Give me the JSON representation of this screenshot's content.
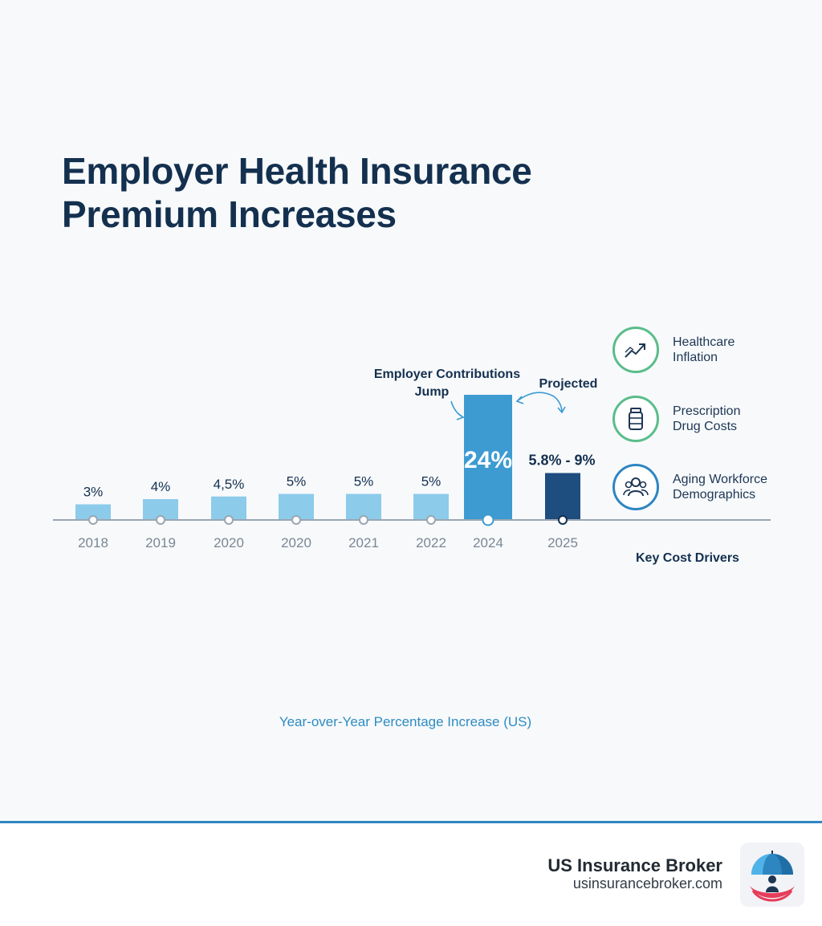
{
  "title_line1": "Employer Health Insurance",
  "title_line2": "Premium Increases",
  "chart_data": {
    "type": "bar",
    "title": "Employer Health Insurance Premium Increases",
    "subtitle": "Year-over-Year Percentage Increase (US)",
    "xlabel": "",
    "ylabel": "",
    "ylim": [
      0,
      24
    ],
    "grid": false,
    "categories": [
      "2018",
      "2019",
      "2020",
      "2020",
      "2021",
      "2022",
      "2024",
      "2025"
    ],
    "values": [
      3,
      4,
      4.5,
      5,
      5,
      5,
      24,
      9
    ],
    "labels": [
      "3%",
      "4%",
      "4,5%",
      "5%",
      "5%",
      "5%",
      "24%",
      "5.8% - 9%"
    ],
    "bar_colors": [
      "#8ccbea",
      "#8ccbea",
      "#8ccbea",
      "#8ccbea",
      "#8ccbea",
      "#8ccbea",
      "#3d9bd2",
      "#1e4d80"
    ],
    "annotations": [
      {
        "text_line1": "Employer Contributions",
        "text_line2": "Jump",
        "target": "2024"
      },
      {
        "text": "Projected",
        "target": "2025"
      }
    ]
  },
  "drivers": {
    "title": "Key Cost Drivers",
    "items": [
      {
        "line1": "Healthcare",
        "line2": "Inflation",
        "icon": "trend-up-icon",
        "color": "#5bbd8a"
      },
      {
        "line1": "Prescription",
        "line2": "Drug Costs",
        "icon": "pill-bottle-icon",
        "color": "#5bbd8a"
      },
      {
        "line1": "Aging Workforce",
        "line2": "Demographics",
        "icon": "people-icon",
        "color": "#2e86c1"
      }
    ]
  },
  "footer": {
    "brand": "US Insurance Broker",
    "url": "usinsurancebroker.com"
  }
}
